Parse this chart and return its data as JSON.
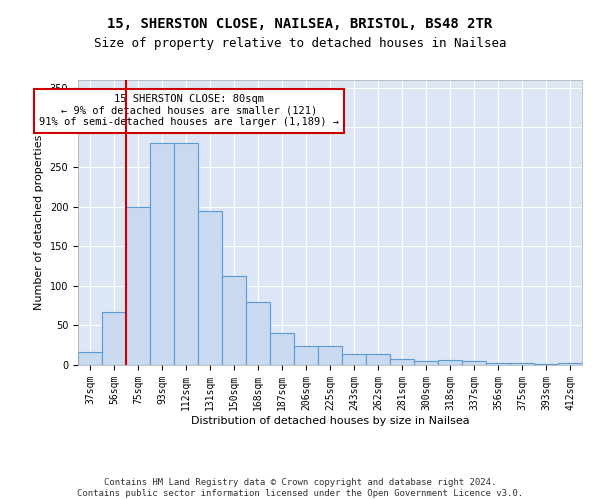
{
  "title1": "15, SHERSTON CLOSE, NAILSEA, BRISTOL, BS48 2TR",
  "title2": "Size of property relative to detached houses in Nailsea",
  "xlabel": "Distribution of detached houses by size in Nailsea",
  "ylabel": "Number of detached properties",
  "categories": [
    "37sqm",
    "56sqm",
    "75sqm",
    "93sqm",
    "112sqm",
    "131sqm",
    "150sqm",
    "168sqm",
    "187sqm",
    "206sqm",
    "225sqm",
    "243sqm",
    "262sqm",
    "281sqm",
    "300sqm",
    "318sqm",
    "337sqm",
    "356sqm",
    "375sqm",
    "393sqm",
    "412sqm"
  ],
  "values": [
    17,
    67,
    200,
    280,
    280,
    195,
    113,
    79,
    40,
    24,
    24,
    14,
    14,
    8,
    5,
    6,
    5,
    3,
    2,
    1,
    3
  ],
  "bar_color": "#c9d9f0",
  "bar_edge_color": "#5b9bd5",
  "vline_x": 1.5,
  "vline_color": "#cc0000",
  "annotation_text": "15 SHERSTON CLOSE: 80sqm\n← 9% of detached houses are smaller (121)\n91% of semi-detached houses are larger (1,189) →",
  "annotation_box_color": "#ffffff",
  "annotation_box_edge": "#cc0000",
  "footer": "Contains HM Land Registry data © Crown copyright and database right 2024.\nContains public sector information licensed under the Open Government Licence v3.0.",
  "ylim": [
    0,
    360
  ],
  "background_color": "#dce6f5",
  "grid_color": "#ffffff",
  "title1_fontsize": 10,
  "title2_fontsize": 9,
  "ylabel_fontsize": 8,
  "xlabel_fontsize": 8,
  "tick_fontsize": 7,
  "ann_fontsize": 7.5,
  "footer_fontsize": 6.5
}
